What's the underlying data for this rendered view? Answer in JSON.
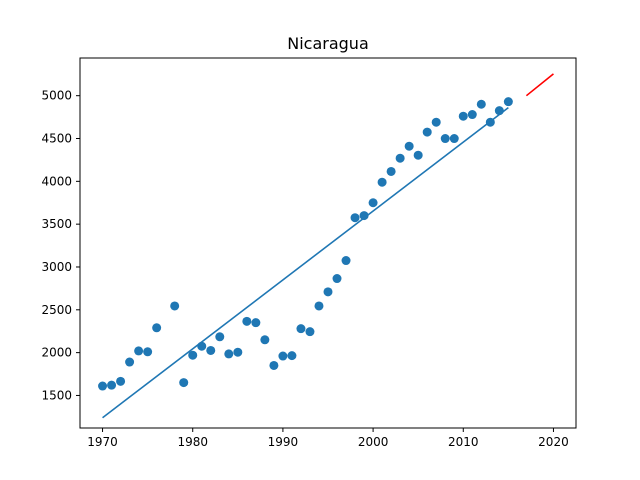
{
  "chart_data": {
    "type": "scatter",
    "title": "Nicaragua",
    "xlabel": "",
    "ylabel": "",
    "xlim": [
      1967.5,
      2022.5
    ],
    "ylim": [
      1120,
      5440
    ],
    "xticks": [
      1970,
      1980,
      1990,
      2000,
      2010,
      2020
    ],
    "yticks": [
      1500,
      2000,
      2500,
      3000,
      3500,
      4000,
      4500,
      5000
    ],
    "grid": false,
    "colors": {
      "points": "#1f77b4",
      "fit": "#1f77b4",
      "forecast": "#ff0000"
    },
    "series": [
      {
        "kind": "scatter",
        "x": [
          1970,
          1971,
          1972,
          1973,
          1974,
          1975,
          1976,
          1978,
          1979,
          1980,
          1981,
          1982,
          1983,
          1984,
          1985,
          1986,
          1987,
          1988,
          1989,
          1990,
          1991,
          1992,
          1993,
          1994,
          1995,
          1996,
          1997,
          1998,
          1999,
          2000,
          2001,
          2002,
          2003,
          2004,
          2005,
          2006,
          2007,
          2008,
          2009,
          2010,
          2011,
          2012,
          2013,
          2014,
          2015
        ],
        "y": [
          1610,
          1620,
          1665,
          1890,
          2020,
          2010,
          2290,
          2545,
          1650,
          1970,
          2075,
          2025,
          2185,
          1985,
          2005,
          2365,
          2350,
          2150,
          1850,
          1960,
          1965,
          2280,
          2245,
          2545,
          2710,
          2865,
          3075,
          3575,
          3600,
          3750,
          3990,
          4115,
          4270,
          4410,
          4305,
          4575,
          4690,
          4500,
          4500,
          4760,
          4780,
          4900,
          4690,
          4825,
          4930
        ]
      },
      {
        "kind": "line",
        "x": [
          1970,
          2015
        ],
        "y": [
          1240,
          4860
        ]
      },
      {
        "kind": "line",
        "x": [
          2017,
          2020
        ],
        "y": [
          5000,
          5255
        ]
      }
    ]
  }
}
